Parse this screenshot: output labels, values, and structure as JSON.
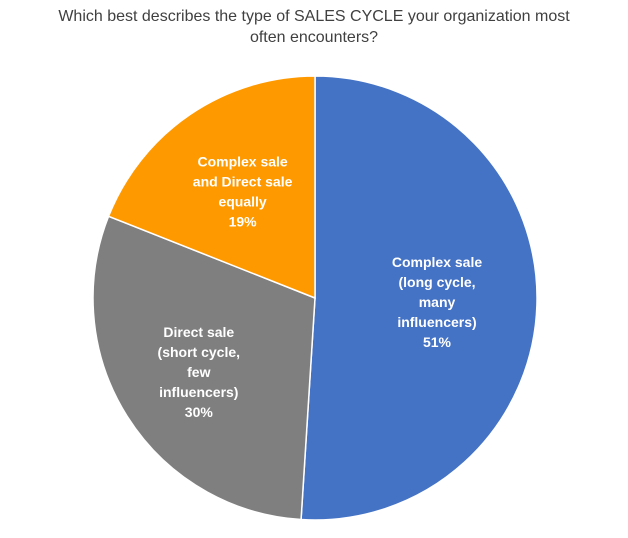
{
  "chart_data": {
    "type": "pie",
    "title_lines": [
      "Which best describes the type of SALES CYCLE your organization most",
      "often encounters?"
    ],
    "slices": [
      {
        "name": "Complex sale (long cycle, many influencers)",
        "value": 51,
        "label_lines": [
          "Complex sale",
          "(long cycle,",
          "many",
          "influencers)",
          "51%"
        ],
        "color": "#4472C4"
      },
      {
        "name": "Direct sale (short cycle, few influencers)",
        "value": 30,
        "label_lines": [
          "Direct sale",
          "(short cycle,",
          "few",
          "influencers)",
          "30%"
        ],
        "color": "#7F7F7F"
      },
      {
        "name": "Complex sale and Direct sale equally",
        "value": 19,
        "label_lines": [
          "Complex sale",
          "and Direct sale",
          "equally",
          "19%"
        ],
        "color": "#FF9900"
      }
    ],
    "start": "12 o'clock",
    "direction": "clockwise",
    "legend": "none",
    "data_labels": "inside"
  }
}
